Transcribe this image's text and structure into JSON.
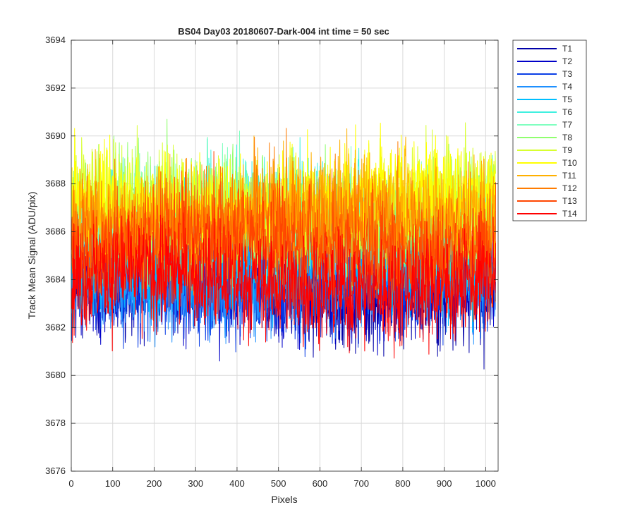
{
  "chart_data": {
    "type": "line",
    "title": "BS04 Day03 20180607-Dark-004 int time = 50 sec",
    "xlabel": "Pixels",
    "ylabel": "Track Mean Signal (ADU/pix)",
    "xlim": [
      0,
      1030
    ],
    "ylim": [
      3676,
      3694
    ],
    "xticks": [
      "0",
      "100",
      "200",
      "300",
      "400",
      "500",
      "600",
      "700",
      "800",
      "900",
      "1000"
    ],
    "yticks": [
      "3676",
      "3678",
      "3680",
      "3682",
      "3684",
      "3686",
      "3688",
      "3690",
      "3692",
      "3694"
    ],
    "grid": true,
    "legend_position": "outside-top-right",
    "n_points": 1024,
    "series": [
      {
        "name": "T1",
        "color": "#0000a8",
        "mean": 3683.6,
        "spread": 1.4
      },
      {
        "name": "T2",
        "color": "#0000c8",
        "mean": 3683.8,
        "spread": 1.4
      },
      {
        "name": "T3",
        "color": "#0a3ee6",
        "mean": 3683.9,
        "spread": 1.4
      },
      {
        "name": "T4",
        "color": "#1e90ff",
        "mean": 3684.0,
        "spread": 1.4
      },
      {
        "name": "T5",
        "color": "#00bfff",
        "mean": 3685.0,
        "spread": 1.6
      },
      {
        "name": "T6",
        "color": "#40f0e0",
        "mean": 3686.6,
        "spread": 1.5
      },
      {
        "name": "T7",
        "color": "#80ffc0",
        "mean": 3686.4,
        "spread": 1.5
      },
      {
        "name": "T8",
        "color": "#90ff70",
        "mean": 3686.8,
        "spread": 1.5
      },
      {
        "name": "T9",
        "color": "#d8ff30",
        "mean": 3687.0,
        "spread": 1.6
      },
      {
        "name": "T10",
        "color": "#ffff00",
        "mean": 3687.2,
        "spread": 1.6
      },
      {
        "name": "T11",
        "color": "#ffb000",
        "mean": 3686.7,
        "spread": 1.6
      },
      {
        "name": "T12",
        "color": "#ff7c00",
        "mean": 3686.2,
        "spread": 1.6
      },
      {
        "name": "T13",
        "color": "#ff4500",
        "mean": 3685.4,
        "spread": 1.5
      },
      {
        "name": "T14",
        "color": "#ff0000",
        "mean": 3683.9,
        "spread": 1.5
      }
    ]
  }
}
